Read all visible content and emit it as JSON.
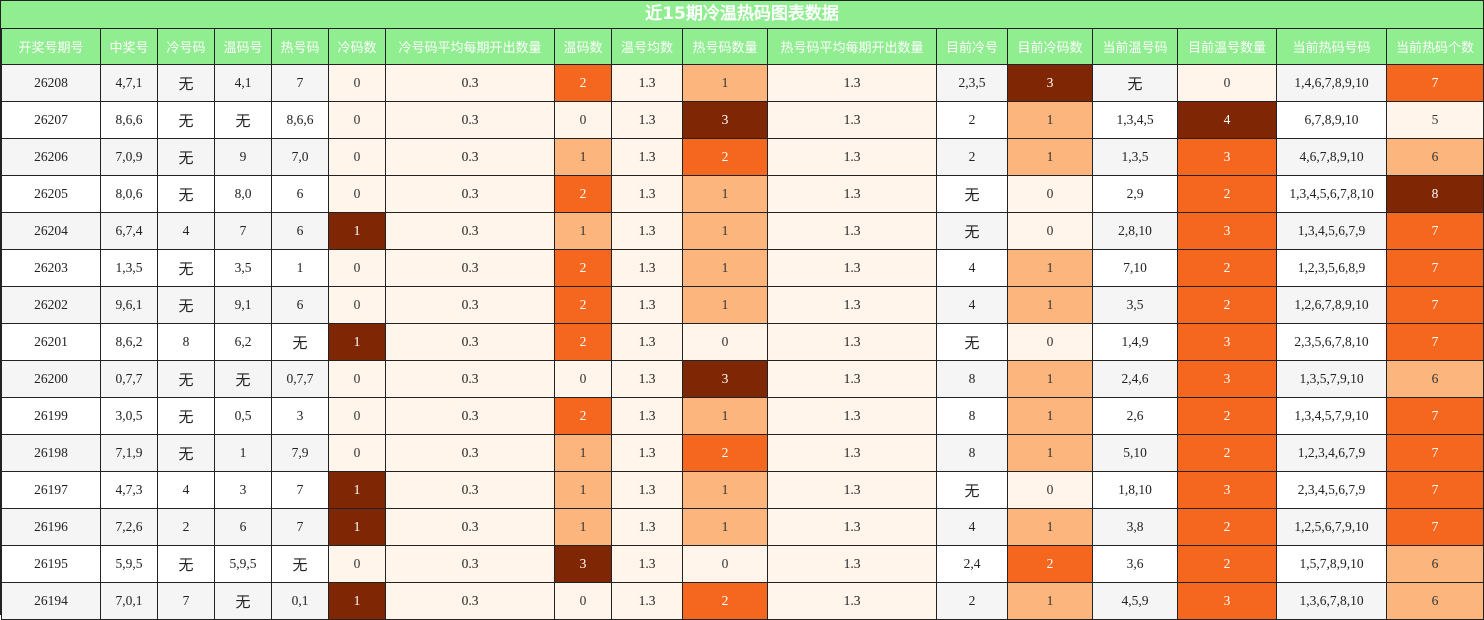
{
  "title": "近15期冷温热码图表数据",
  "columns": [
    "开奖号期号",
    "中奖号",
    "冷号码",
    "温码号",
    "热号码",
    "冷码数",
    "冷号码平均每期开出数量",
    "温码数",
    "温号均数",
    "热号码数量",
    "热号码平均每期开出数量",
    "目前冷号",
    "目前冷码数",
    "当前温号码",
    "目前温号数量",
    "当前热码号码",
    "当前热码个数"
  ],
  "colors": {
    "header_bg": "#90ee90",
    "header_text": "#ffffff",
    "scale_0": "#fff5eb",
    "scale_1": "#fdb57e",
    "scale_2": "#f5661e",
    "scale_3": "#7f2704"
  },
  "rows": [
    [
      "26208",
      "4,7,1",
      "无",
      "4,1",
      "7",
      "0",
      "0.3",
      "2",
      "1.3",
      "1",
      "1.3",
      "2,3,5",
      "3",
      "无",
      "0",
      "1,4,6,7,8,9,10",
      "7"
    ],
    [
      "26207",
      "8,6,6",
      "无",
      "无",
      "8,6,6",
      "0",
      "0.3",
      "0",
      "1.3",
      "3",
      "1.3",
      "2",
      "1",
      "1,3,4,5",
      "4",
      "6,7,8,9,10",
      "5"
    ],
    [
      "26206",
      "7,0,9",
      "无",
      "9",
      "7,0",
      "0",
      "0.3",
      "1",
      "1.3",
      "2",
      "1.3",
      "2",
      "1",
      "1,3,5",
      "3",
      "4,6,7,8,9,10",
      "6"
    ],
    [
      "26205",
      "8,0,6",
      "无",
      "8,0",
      "6",
      "0",
      "0.3",
      "2",
      "1.3",
      "1",
      "1.3",
      "无",
      "0",
      "2,9",
      "2",
      "1,3,4,5,6,7,8,10",
      "8"
    ],
    [
      "26204",
      "6,7,4",
      "4",
      "7",
      "6",
      "1",
      "0.3",
      "1",
      "1.3",
      "1",
      "1.3",
      "无",
      "0",
      "2,8,10",
      "3",
      "1,3,4,5,6,7,9",
      "7"
    ],
    [
      "26203",
      "1,3,5",
      "无",
      "3,5",
      "1",
      "0",
      "0.3",
      "2",
      "1.3",
      "1",
      "1.3",
      "4",
      "1",
      "7,10",
      "2",
      "1,2,3,5,6,8,9",
      "7"
    ],
    [
      "26202",
      "9,6,1",
      "无",
      "9,1",
      "6",
      "0",
      "0.3",
      "2",
      "1.3",
      "1",
      "1.3",
      "4",
      "1",
      "3,5",
      "2",
      "1,2,6,7,8,9,10",
      "7"
    ],
    [
      "26201",
      "8,6,2",
      "8",
      "6,2",
      "无",
      "1",
      "0.3",
      "2",
      "1.3",
      "0",
      "1.3",
      "无",
      "0",
      "1,4,9",
      "3",
      "2,3,5,6,7,8,10",
      "7"
    ],
    [
      "26200",
      "0,7,7",
      "无",
      "无",
      "0,7,7",
      "0",
      "0.3",
      "0",
      "1.3",
      "3",
      "1.3",
      "8",
      "1",
      "2,4,6",
      "3",
      "1,3,5,7,9,10",
      "6"
    ],
    [
      "26199",
      "3,0,5",
      "无",
      "0,5",
      "3",
      "0",
      "0.3",
      "2",
      "1.3",
      "1",
      "1.3",
      "8",
      "1",
      "2,6",
      "2",
      "1,3,4,5,7,9,10",
      "7"
    ],
    [
      "26198",
      "7,1,9",
      "无",
      "1",
      "7,9",
      "0",
      "0.3",
      "1",
      "1.3",
      "2",
      "1.3",
      "8",
      "1",
      "5,10",
      "2",
      "1,2,3,4,6,7,9",
      "7"
    ],
    [
      "26197",
      "4,7,3",
      "4",
      "3",
      "7",
      "1",
      "0.3",
      "1",
      "1.3",
      "1",
      "1.3",
      "无",
      "0",
      "1,8,10",
      "3",
      "2,3,4,5,6,7,9",
      "7"
    ],
    [
      "26196",
      "7,2,6",
      "2",
      "6",
      "7",
      "1",
      "0.3",
      "1",
      "1.3",
      "1",
      "1.3",
      "4",
      "1",
      "3,8",
      "2",
      "1,2,5,6,7,9,10",
      "7"
    ],
    [
      "26195",
      "5,9,5",
      "无",
      "5,9,5",
      "无",
      "0",
      "0.3",
      "3",
      "1.3",
      "0",
      "1.3",
      "2,4",
      "2",
      "3,6",
      "2",
      "1,5,7,8,9,10",
      "6"
    ],
    [
      "26194",
      "7,0,1",
      "7",
      "无",
      "0,1",
      "1",
      "0.3",
      "0",
      "1.3",
      "2",
      "1.3",
      "2",
      "1",
      "4,5,9",
      "3",
      "1,3,6,7,8,10",
      "6"
    ]
  ]
}
